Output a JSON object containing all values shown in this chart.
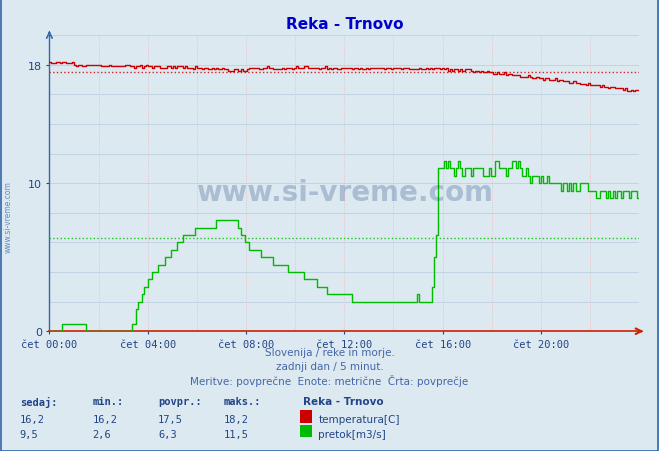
{
  "title": "Reka - Trnovo",
  "title_color": "#0000cc",
  "bg_color": "#dce9f0",
  "plot_bg_color": "#dce9f0",
  "xlabel_times": [
    "čet 00:00",
    "čet 04:00",
    "čet 08:00",
    "čet 12:00",
    "čet 16:00",
    "čet 20:00"
  ],
  "yticks": [
    0,
    10,
    18
  ],
  "temp_avg": 17.5,
  "flow_avg": 6.3,
  "temp_min": 16.2,
  "temp_max": 18.2,
  "temp_povpr": 17.5,
  "temp_sedaj": 16.2,
  "flow_min": 2.6,
  "flow_max": 11.5,
  "flow_povpr": 6.3,
  "flow_sedaj": 9.5,
  "temp_color": "#cc0000",
  "flow_color": "#00bb00",
  "grid_v_color": "#e8b8b8",
  "grid_h_color": "#b8cce0",
  "subtitle1": "Slovenija / reke in morje.",
  "subtitle2": "zadnji dan / 5 minut.",
  "subtitle3": "Meritve: povprečne  Enote: metrične  Črta: povprečje",
  "legend_title": "Reka - Trnovo",
  "legend_temp": "temperatura[C]",
  "legend_flow": "pretok[m3/s]",
  "watermark": "www.si-vreme.com",
  "n_points": 288,
  "ylim": [
    0,
    20
  ],
  "axis_color": "#3366aa",
  "bottom_axis_color": "#cc2200",
  "text_color": "#4466aa",
  "label_color": "#224488"
}
